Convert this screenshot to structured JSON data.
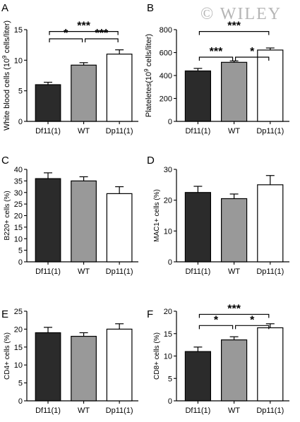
{
  "watermark": "© WILEY",
  "colors": {
    "Df11(1)": "#2b2b2b",
    "WT": "#999999",
    "Dp11(1)": "#ffffff"
  },
  "chart_data": [
    {
      "panel": "A",
      "type": "bar",
      "categories": [
        "Df11(1)",
        "WT",
        "Dp11(1)"
      ],
      "values": [
        6.0,
        9.2,
        11.0
      ],
      "errors": [
        0.4,
        0.4,
        0.7
      ],
      "ylabel_main": "White blood cells (10",
      "ylabel_sup": "9",
      "ylabel_tail": " cells/liter)",
      "ylim": [
        0,
        15
      ],
      "yticks": [
        0,
        5,
        10,
        15
      ],
      "significance": [
        {
          "from": 0,
          "to": 1,
          "label": "*"
        },
        {
          "from": 1,
          "to": 2,
          "label": "***"
        },
        {
          "from": 0,
          "to": 2,
          "label": "***"
        }
      ]
    },
    {
      "panel": "B",
      "type": "bar",
      "categories": [
        "Df11(1)",
        "WT",
        "Dp11(1)"
      ],
      "values": [
        440,
        515,
        622
      ],
      "errors": [
        22,
        12,
        18
      ],
      "ylabel_main": "Plateletes(10",
      "ylabel_sup": "9",
      "ylabel_tail": " cells/liter)",
      "ylim": [
        0,
        800
      ],
      "yticks": [
        0,
        200,
        400,
        600,
        800
      ],
      "significance": [
        {
          "from": 0,
          "to": 1,
          "label": "***"
        },
        {
          "from": 1,
          "to": 2,
          "label": "*"
        },
        {
          "from": 0,
          "to": 2,
          "label": "***"
        }
      ]
    },
    {
      "panel": "C",
      "type": "bar",
      "categories": [
        "Df11(1)",
        "WT",
        "Dp11(1)"
      ],
      "values": [
        36,
        35,
        29.5
      ],
      "errors": [
        2.5,
        1.8,
        3.0
      ],
      "ylabel_main": "B220+ cells (%)",
      "ylabel_sup": "",
      "ylabel_tail": "",
      "ylim": [
        0,
        40
      ],
      "yticks": [
        0,
        5,
        10,
        15,
        20,
        25,
        30,
        35,
        40
      ],
      "significance": []
    },
    {
      "panel": "D",
      "type": "bar",
      "categories": [
        "Df11(1)",
        "WT",
        "Dp11(1)"
      ],
      "values": [
        22.5,
        20.5,
        25.0
      ],
      "errors": [
        2.0,
        1.5,
        3.0
      ],
      "ylabel_main": "MAC1+ cells (%)",
      "ylabel_sup": "",
      "ylabel_tail": "",
      "ylim": [
        0,
        30
      ],
      "yticks": [
        0,
        10,
        20,
        30
      ],
      "significance": []
    },
    {
      "panel": "E",
      "type": "bar",
      "categories": [
        "Df11(1)",
        "WT",
        "Dp11(1)"
      ],
      "values": [
        19.0,
        18.0,
        20.0
      ],
      "errors": [
        1.5,
        1.0,
        1.5
      ],
      "ylabel_main": "CD4+ cells (%)",
      "ylabel_sup": "",
      "ylabel_tail": "",
      "ylim": [
        0,
        25
      ],
      "yticks": [
        0,
        5,
        10,
        15,
        20,
        25
      ],
      "significance": []
    },
    {
      "panel": "F",
      "type": "bar",
      "categories": [
        "Df11(1)",
        "WT",
        "Dp11(1)"
      ],
      "values": [
        11.0,
        13.6,
        16.3
      ],
      "errors": [
        1.0,
        0.7,
        0.9
      ],
      "ylabel_main": "CD8+ cells (%)",
      "ylabel_sup": "",
      "ylabel_tail": "",
      "ylim": [
        0,
        20
      ],
      "yticks": [
        0,
        5,
        10,
        15,
        20
      ],
      "significance": [
        {
          "from": 0,
          "to": 1,
          "label": "*"
        },
        {
          "from": 1,
          "to": 2,
          "label": "*"
        },
        {
          "from": 0,
          "to": 2,
          "label": "***"
        }
      ]
    }
  ]
}
